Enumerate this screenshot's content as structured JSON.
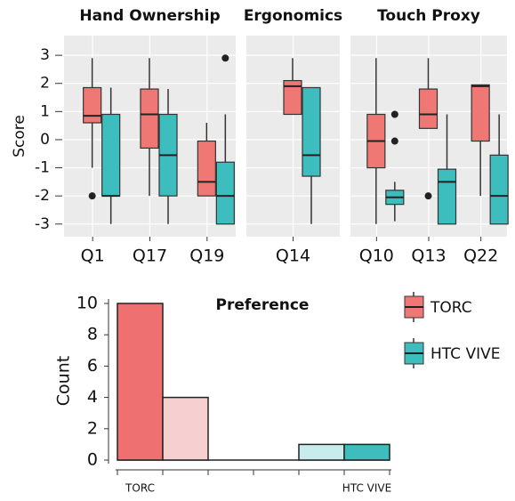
{
  "chart_data": [
    {
      "type": "box",
      "ylabel": "Score",
      "ylim": [
        -3.45,
        3.7
      ],
      "yticks": [
        -3,
        -2,
        -1,
        0,
        1,
        2,
        3
      ],
      "grid": true,
      "facets": [
        {
          "title": "Hand Ownership",
          "categories": [
            "Q1",
            "Q17",
            "Q19"
          ]
        },
        {
          "title": "Ergonomics",
          "categories": [
            "Q14"
          ]
        },
        {
          "title": "Touch Proxy",
          "categories": [
            "Q10",
            "Q13",
            "Q22"
          ]
        }
      ],
      "series": [
        {
          "name": "TORC",
          "color": "#f07874",
          "values": [
            {
              "min": -1,
              "q1": 0.6,
              "median": 0.85,
              "q3": 1.85,
              "max": 2.9,
              "outliers": [
                -2
              ]
            },
            {
              "min": -2,
              "q1": -0.3,
              "median": 0.9,
              "q3": 1.8,
              "max": 2.9,
              "outliers": []
            },
            {
              "min": -2,
              "q1": -2,
              "median": -1.5,
              "q3": -0.05,
              "max": 0.6,
              "outliers": []
            },
            {
              "min": 0.9,
              "q1": 0.9,
              "median": 1.9,
              "q3": 2.1,
              "max": 2.9,
              "outliers": []
            },
            {
              "min": -3,
              "q1": -1,
              "median": -0.05,
              "q3": 0.9,
              "max": 2.9,
              "outliers": []
            },
            {
              "min": 0.4,
              "q1": 0.4,
              "median": 0.9,
              "q3": 1.8,
              "max": 2.9,
              "outliers": [
                -2
              ]
            },
            {
              "min": -2,
              "q1": -0.05,
              "median": 1.9,
              "q3": 1.95,
              "max": 1.95,
              "outliers": []
            }
          ]
        },
        {
          "name": "HTC VIVE",
          "color": "#3dbdbd",
          "values": [
            {
              "min": -3,
              "q1": -2,
              "median": -2,
              "q3": 0.9,
              "max": 1.85,
              "outliers": []
            },
            {
              "min": -3,
              "q1": -2,
              "median": -0.55,
              "q3": 0.9,
              "max": 1.8,
              "outliers": []
            },
            {
              "min": -3,
              "q1": -3,
              "median": -2,
              "q3": -0.8,
              "max": 0.9,
              "outliers": [
                2.9
              ]
            },
            {
              "min": -3,
              "q1": -1.3,
              "median": -0.55,
              "q3": 1.85,
              "max": 1.85,
              "outliers": []
            },
            {
              "min": -2.9,
              "q1": -2.3,
              "median": -2.05,
              "q3": -1.8,
              "max": -1.5,
              "outliers": [
                0.9,
                -0.05
              ]
            },
            {
              "min": -3,
              "q1": -3,
              "median": -1.5,
              "q3": -1.05,
              "max": 0.9,
              "outliers": []
            },
            {
              "min": -3,
              "q1": -3,
              "median": -2,
              "q3": -0.55,
              "max": 0.9,
              "outliers": []
            }
          ]
        }
      ]
    },
    {
      "type": "bar",
      "title": "Preference",
      "ylabel": "Count",
      "ylim": [
        0,
        10
      ],
      "yticks": [
        0,
        2,
        4,
        6,
        8,
        10
      ],
      "categories": [
        "TORC",
        null,
        null,
        null,
        null,
        "HTC VIVE"
      ],
      "values": [
        10,
        4,
        0,
        0,
        1,
        1
      ],
      "colors": [
        "#ef7070",
        "#f6d0d0",
        "#ffffff",
        "#ffffff",
        "#c8ecec",
        "#3fbcbc"
      ]
    }
  ]
}
